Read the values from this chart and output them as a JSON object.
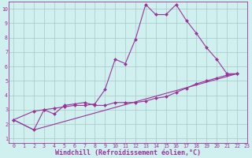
{
  "series": [
    {
      "x": [
        0,
        2,
        3,
        4,
        5,
        6,
        7,
        8,
        9,
        10,
        11,
        12,
        13,
        14,
        15,
        16,
        17,
        18,
        19,
        20,
        21,
        22
      ],
      "y": [
        2.3,
        2.9,
        3.0,
        3.1,
        3.2,
        3.3,
        3.3,
        3.4,
        4.4,
        6.5,
        6.2,
        7.9,
        10.3,
        9.6,
        9.6,
        10.3,
        9.2,
        8.3,
        7.3,
        6.5,
        5.5,
        5.5
      ]
    },
    {
      "x": [
        0,
        2,
        3,
        4,
        5,
        6,
        7,
        8,
        9,
        10,
        11,
        12,
        13,
        14,
        15,
        16,
        17,
        18,
        19,
        20,
        21,
        22
      ],
      "y": [
        2.3,
        1.6,
        3.0,
        2.7,
        3.3,
        3.4,
        3.5,
        3.3,
        3.3,
        3.5,
        3.5,
        3.5,
        3.6,
        3.8,
        3.9,
        4.2,
        4.5,
        4.8,
        5.0,
        5.2,
        5.4,
        5.5
      ]
    },
    {
      "x": [
        0,
        2,
        22
      ],
      "y": [
        2.3,
        1.6,
        5.5
      ]
    }
  ],
  "color": "#993399",
  "bg_color": "#d0f0f0",
  "grid_color": "#a8c8c8",
  "xlabel": "Windchill (Refroidissement éolien,°C)",
  "xlabel_color": "#993399",
  "xlim": [
    -0.5,
    23
  ],
  "ylim": [
    0.7,
    10.5
  ],
  "xtick_labels": [
    "0",
    "1",
    "2",
    "3",
    "4",
    "5",
    "6",
    "7",
    "8",
    "9",
    "10",
    "11",
    "12",
    "13",
    "14",
    "15",
    "16",
    "17",
    "18",
    "19",
    "20",
    "21",
    "22",
    "23"
  ],
  "xtick_positions": [
    0,
    1,
    2,
    3,
    4,
    5,
    6,
    7,
    8,
    9,
    10,
    11,
    12,
    13,
    14,
    15,
    16,
    17,
    18,
    19,
    20,
    21,
    22,
    23
  ],
  "yticks": [
    1,
    2,
    3,
    4,
    5,
    6,
    7,
    8,
    9,
    10
  ],
  "tick_fontsize": 4.8,
  "xlabel_fontsize": 6.0,
  "marker": "D",
  "markersize": 2.0,
  "linewidth": 0.8
}
